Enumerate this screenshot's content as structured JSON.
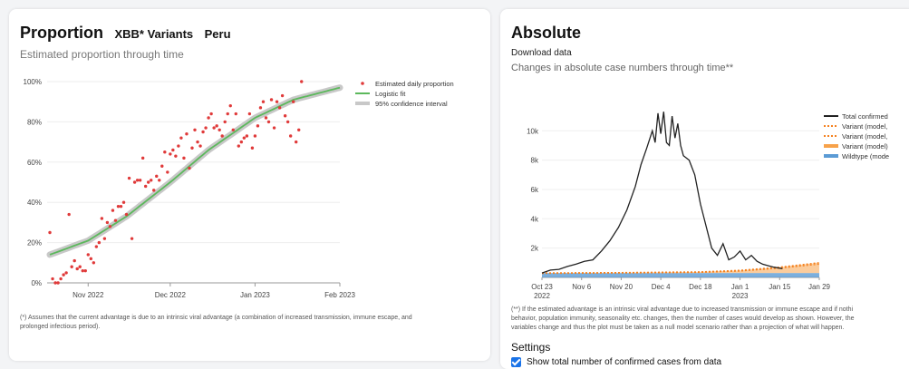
{
  "left": {
    "title": "Proportion",
    "variant": "XBB* Variants",
    "country": "Peru",
    "subtitle": "Estimated proportion through time",
    "footnote_line1": "(*) Assumes that the current advantage is due to an intrinsic viral advantage (a combination of increased transmission, immune escape, and",
    "footnote_line2": "prolonged infectious period)."
  },
  "right": {
    "title": "Absolute",
    "download": "Download data",
    "subtitle": "Changes in absolute case numbers through time**",
    "footnote_line1": "(**) If the estimated advantage is an intrinsic viral advantage due to increased transmission or immune escape and if nothi",
    "footnote_line2": "behavior, population immunity, seasonality etc. changes, then the number of cases would develop as shown. However, the",
    "footnote_line3": "variables change and thus the plot must be taken as a null model scenario rather than a projection of what will happen.",
    "settings_title": "Settings",
    "checkbox_label": "Show total number of confirmed cases from data"
  },
  "colors": {
    "points": "#e03a3a",
    "fit": "#5cb85c",
    "ci": "#c8c8c8",
    "total": "#222222",
    "variant_dotted": "#f58220",
    "variant_band": "#f7a24a",
    "wildtype": "#5b9bd5"
  },
  "chart_data": [
    {
      "type": "scatter",
      "yticks": [
        "0%",
        "20%",
        "40%",
        "60%",
        "80%",
        "100%"
      ],
      "xticks": [
        "Nov 2022",
        "Dec 2022",
        "Jan 2023",
        "Feb 2023"
      ],
      "x_range": [
        "2022-10-17",
        "2023-02-01"
      ],
      "ylim": [
        0,
        1
      ],
      "legend": [
        "Estimated daily proportion",
        "Logistic fit",
        "95% confidence interval"
      ],
      "legend_position": "top-right",
      "series": [
        {
          "name": "Estimated daily proportion",
          "x": [
            "2022-10-18",
            "2022-10-19",
            "2022-10-20",
            "2022-10-21",
            "2022-10-22",
            "2022-10-23",
            "2022-10-24",
            "2022-10-25",
            "2022-10-26",
            "2022-10-27",
            "2022-10-28",
            "2022-10-29",
            "2022-10-30",
            "2022-10-31",
            "2022-11-01",
            "2022-11-02",
            "2022-11-03",
            "2022-11-04",
            "2022-11-05",
            "2022-11-06",
            "2022-11-07",
            "2022-11-08",
            "2022-11-09",
            "2022-11-10",
            "2022-11-11",
            "2022-11-12",
            "2022-11-13",
            "2022-11-14",
            "2022-11-15",
            "2022-11-16",
            "2022-11-17",
            "2022-11-18",
            "2022-11-19",
            "2022-11-20",
            "2022-11-21",
            "2022-11-22",
            "2022-11-23",
            "2022-11-24",
            "2022-11-25",
            "2022-11-26",
            "2022-11-27",
            "2022-11-28",
            "2022-11-29",
            "2022-11-30",
            "2022-12-01",
            "2022-12-02",
            "2022-12-03",
            "2022-12-04",
            "2022-12-05",
            "2022-12-06",
            "2022-12-07",
            "2022-12-08",
            "2022-12-09",
            "2022-12-10",
            "2022-12-11",
            "2022-12-12",
            "2022-12-13",
            "2022-12-14",
            "2022-12-15",
            "2022-12-16",
            "2022-12-17",
            "2022-12-18",
            "2022-12-19",
            "2022-12-20",
            "2022-12-21",
            "2022-12-22",
            "2022-12-23",
            "2022-12-24",
            "2022-12-25",
            "2022-12-26",
            "2022-12-27",
            "2022-12-28",
            "2022-12-29",
            "2022-12-30",
            "2022-12-31",
            "2023-01-01",
            "2023-01-02",
            "2023-01-03",
            "2023-01-04",
            "2023-01-05",
            "2023-01-06",
            "2023-01-07",
            "2023-01-08",
            "2023-01-09",
            "2023-01-10",
            "2023-01-11",
            "2023-01-12",
            "2023-01-13",
            "2023-01-14",
            "2023-01-15",
            "2023-01-16",
            "2023-01-17",
            "2023-01-18"
          ],
          "y": [
            0.25,
            0.02,
            0.0,
            0.0,
            0.02,
            0.04,
            0.05,
            0.34,
            0.08,
            0.11,
            0.07,
            0.08,
            0.06,
            0.06,
            0.14,
            0.12,
            0.1,
            0.18,
            0.2,
            0.32,
            0.22,
            0.3,
            0.28,
            0.36,
            0.31,
            0.38,
            0.38,
            0.4,
            0.34,
            0.52,
            0.22,
            0.5,
            0.51,
            0.51,
            0.62,
            0.48,
            0.5,
            0.51,
            0.46,
            0.53,
            0.51,
            0.58,
            0.65,
            0.55,
            0.64,
            0.66,
            0.63,
            0.68,
            0.72,
            0.62,
            0.74,
            0.57,
            0.67,
            0.76,
            0.7,
            0.68,
            0.75,
            0.77,
            0.82,
            0.84,
            0.77,
            0.78,
            0.76,
            0.73,
            0.8,
            0.84,
            0.88,
            0.76,
            0.84,
            0.68,
            0.7,
            0.72,
            0.73,
            0.84,
            0.67,
            0.73,
            0.78,
            0.87,
            0.9,
            0.82,
            0.8,
            0.91,
            0.77,
            0.9,
            0.87,
            0.93,
            0.83,
            0.8,
            0.73,
            0.9,
            0.7,
            0.76,
            1.0
          ]
        },
        {
          "name": "Logistic fit",
          "x": [
            "2022-10-18",
            "2022-11-01",
            "2022-11-15",
            "2022-12-01",
            "2022-12-15",
            "2023-01-01",
            "2023-01-15",
            "2023-02-01"
          ],
          "y": [
            0.14,
            0.21,
            0.33,
            0.5,
            0.66,
            0.82,
            0.91,
            0.97
          ]
        }
      ]
    },
    {
      "type": "line",
      "yticks": [
        "2k",
        "4k",
        "6k",
        "8k",
        "10k"
      ],
      "xticks": [
        [
          "Oct 23",
          "2022"
        ],
        [
          "Nov 6",
          ""
        ],
        [
          "Nov 20",
          ""
        ],
        [
          "Dec 4",
          ""
        ],
        [
          "Dec 18",
          ""
        ],
        [
          "Jan 1",
          "2023"
        ],
        [
          "Jan 15",
          ""
        ],
        [
          "Jan 29",
          ""
        ]
      ],
      "x_range": [
        "2022-10-23",
        "2023-01-29"
      ],
      "ylim": [
        0,
        11500
      ],
      "legend": [
        "Total confirmed",
        "Variant (model,",
        "Variant (model,",
        "Variant (model)",
        "Wildtype (mode"
      ],
      "legend_position": "top-right",
      "series": [
        {
          "name": "Total confirmed",
          "x": [
            "2022-10-23",
            "2022-10-26",
            "2022-10-29",
            "2022-11-01",
            "2022-11-04",
            "2022-11-07",
            "2022-11-10",
            "2022-11-13",
            "2022-11-16",
            "2022-11-19",
            "2022-11-22",
            "2022-11-25",
            "2022-11-27",
            "2022-11-29",
            "2022-12-01",
            "2022-12-02",
            "2022-12-03",
            "2022-12-04",
            "2022-12-05",
            "2022-12-06",
            "2022-12-07",
            "2022-12-08",
            "2022-12-09",
            "2022-12-10",
            "2022-12-11",
            "2022-12-12",
            "2022-12-14",
            "2022-12-16",
            "2022-12-18",
            "2022-12-20",
            "2022-12-22",
            "2022-12-24",
            "2022-12-26",
            "2022-12-28",
            "2022-12-30",
            "2023-01-01",
            "2023-01-03",
            "2023-01-05",
            "2023-01-07",
            "2023-01-09",
            "2023-01-11",
            "2023-01-13",
            "2023-01-16"
          ],
          "y": [
            300,
            500,
            550,
            750,
            900,
            1100,
            1200,
            1800,
            2500,
            3400,
            4600,
            6200,
            7700,
            8800,
            10000,
            9200,
            11200,
            9800,
            11300,
            9200,
            9000,
            11000,
            9500,
            10500,
            9000,
            8300,
            8000,
            7000,
            5000,
            3500,
            2000,
            1500,
            2300,
            1200,
            1400,
            1800,
            1200,
            1500,
            1100,
            900,
            800,
            700,
            600
          ]
        },
        {
          "name": "Variant (model)",
          "x": [
            "2022-10-23",
            "2022-11-20",
            "2022-12-18",
            "2023-01-01",
            "2023-01-15",
            "2023-01-29"
          ],
          "y": [
            300,
            330,
            380,
            480,
            700,
            1000
          ]
        },
        {
          "name": "Wildtype (model)",
          "x": [
            "2022-10-23",
            "2023-01-29"
          ],
          "y": [
            300,
            300
          ]
        }
      ]
    }
  ]
}
